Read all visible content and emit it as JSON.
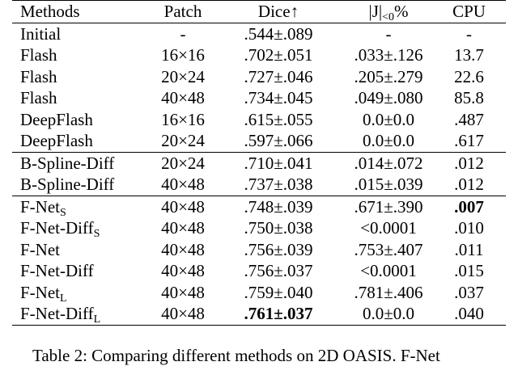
{
  "table": {
    "header": [
      "Methods",
      "Patch",
      "Dice↑",
      {
        "text": "|J|",
        "subscript": "<0",
        "suffix": "%"
      },
      "CPU"
    ],
    "groups": [
      [
        [
          "Initial",
          "-",
          ".544±.089",
          "-",
          "-"
        ],
        [
          "Flash",
          "16×16",
          ".702±.051",
          ".033±.126",
          "13.7"
        ],
        [
          "Flash",
          "20×24",
          ".727±.046",
          ".205±.279",
          "22.6"
        ],
        [
          "Flash",
          "40×48",
          ".734±.045",
          ".049±.080",
          "85.8"
        ],
        [
          "DeepFlash",
          "16×16",
          ".615±.055",
          "0.0±0.0",
          ".487"
        ],
        [
          "DeepFlash",
          "20×24",
          ".597±.066",
          "0.0±0.0",
          ".617"
        ]
      ],
      [
        [
          "B-Spline-Diff",
          "20×24",
          ".710±.041",
          ".014±.072",
          ".012"
        ],
        [
          "B-Spline-Diff",
          "40×48",
          ".737±.038",
          ".015±.039",
          ".012"
        ]
      ],
      [
        [
          {
            "text": "F-Net",
            "subscript": "S"
          },
          "40×48",
          ".748±.039",
          ".671±.390",
          {
            "text": ".007",
            "bold": true
          }
        ],
        [
          {
            "text": "F-Net-Diff",
            "subscript": "S"
          },
          "40×48",
          ".750±.038",
          "<0.0001",
          ".010"
        ],
        [
          "F-Net",
          "40×48",
          ".756±.039",
          ".753±.407",
          ".011"
        ],
        [
          "F-Net-Diff",
          "40×48",
          ".756±.037",
          "<0.0001",
          ".015"
        ],
        [
          {
            "text": "F-Net",
            "subscript": "L"
          },
          "40×48",
          ".759±.040",
          ".781±.406",
          ".037"
        ],
        [
          {
            "text": "F-Net-Diff",
            "subscript": "L"
          },
          "40×48",
          {
            "text": ".761±.037",
            "bold": true
          },
          "0.0±0.0",
          ".040"
        ]
      ]
    ],
    "caption": "Table 2: Comparing different methods on 2D OASIS. F-Net"
  }
}
